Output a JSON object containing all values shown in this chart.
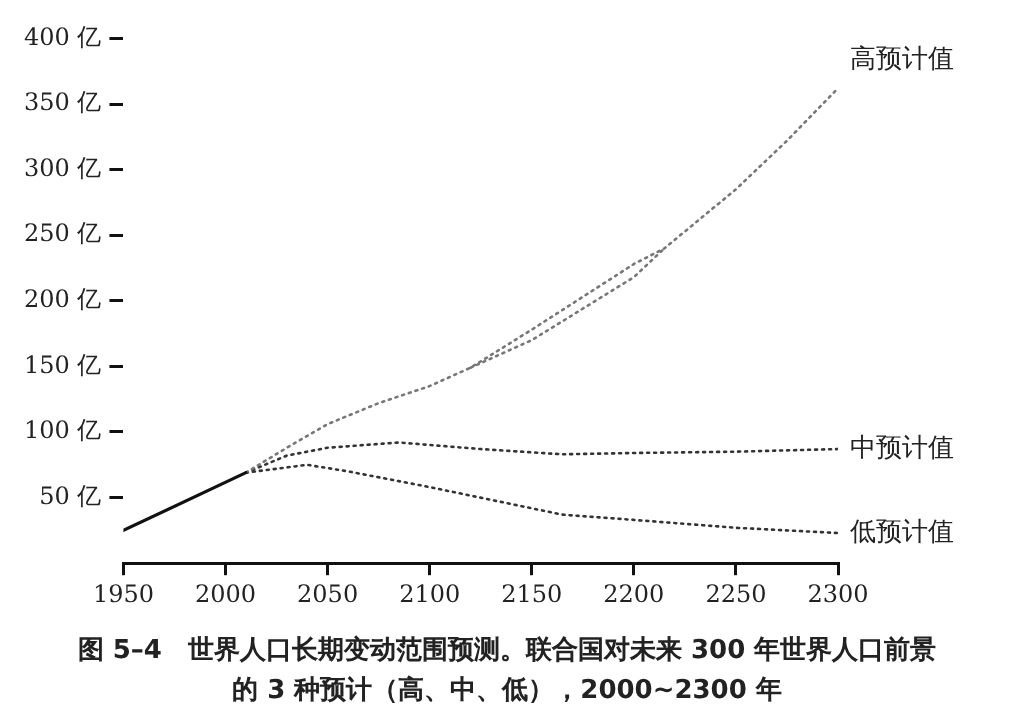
{
  "chart_data": {
    "type": "line",
    "title": "图 5–4　世界人口长期变动范围预测。联合国对未来 300 年世界人口前景的 3 种预计（高、中、低），2000~2300 年",
    "xlim": [
      1950,
      2300
    ],
    "xticks": [
      1950,
      2000,
      2050,
      2100,
      2150,
      2200,
      2250,
      2300
    ],
    "ylim": [
      0,
      400
    ],
    "yticks": [
      {
        "value": 50,
        "label": "50 亿"
      },
      {
        "value": 100,
        "label": "100 亿"
      },
      {
        "value": 150,
        "label": "150 亿"
      },
      {
        "value": 200,
        "label": "200 亿"
      },
      {
        "value": 250,
        "label": "250 亿"
      },
      {
        "value": 300,
        "label": "300 亿"
      },
      {
        "value": 350,
        "label": "350 亿"
      },
      {
        "value": 400,
        "label": "400 亿"
      }
    ],
    "grid": false,
    "legend": false,
    "marker": "none",
    "series": [
      {
        "color": "#111111",
        "line_style": "solid",
        "x": [
          1950,
          2010
        ],
        "values": [
          25,
          69
        ]
      },
      {
        "name": "高预计值",
        "color": "#777777",
        "line_style": "dotted",
        "x": [
          2010,
          2030,
          2050,
          2075,
          2100,
          2120,
          2150,
          2200,
          2215,
          2250,
          2275,
          2300
        ],
        "values": [
          69,
          88,
          106,
          122,
          135,
          149,
          178,
          228,
          240,
          285,
          322,
          362
        ]
      },
      {
        "color": "#777777",
        "line_style": "dotted",
        "x": [
          2120,
          2150,
          2200,
          2215
        ],
        "values": [
          149,
          170,
          218,
          240
        ]
      },
      {
        "name": "中预计值",
        "color": "#333333",
        "line_style": "dotted",
        "x": [
          2010,
          2030,
          2050,
          2085,
          2125,
          2165,
          2200,
          2250,
          2300
        ],
        "values": [
          69,
          82,
          88,
          92,
          87,
          83,
          84,
          85,
          87
        ]
      },
      {
        "name": "低预计值",
        "color": "#333333",
        "line_style": "dotted",
        "x": [
          2010,
          2040,
          2060,
          2100,
          2165,
          2200,
          2250,
          2300
        ],
        "values": [
          69,
          75,
          70,
          58,
          37,
          33,
          27,
          23
        ]
      }
    ]
  }
}
